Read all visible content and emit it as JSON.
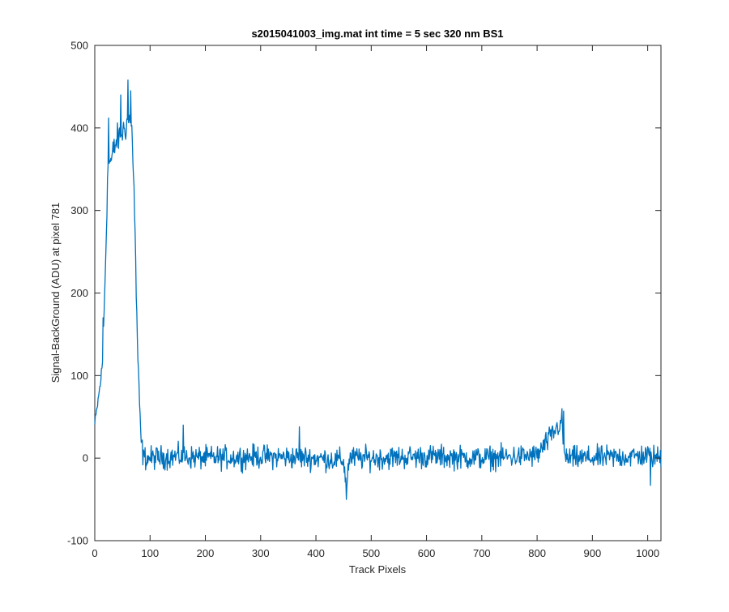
{
  "chart_data": {
    "type": "line",
    "title": "s2015041003_img.mat int time = 5 sec  320 nm BS1",
    "xlabel": "Track Pixels",
    "ylabel": "Signal-BackGround (ADU) at pixel 781",
    "xlim": [
      0,
      1024
    ],
    "ylim": [
      -100,
      500
    ],
    "x_ticks": [
      0,
      100,
      200,
      300,
      400,
      500,
      600,
      700,
      800,
      900,
      1000
    ],
    "y_ticks": [
      -100,
      0,
      100,
      200,
      300,
      400,
      500
    ],
    "x_tick_labels": [
      "0",
      "100",
      "200",
      "300",
      "400",
      "500",
      "600",
      "700",
      "800",
      "900",
      "1000"
    ],
    "y_tick_labels": [
      "-100",
      "0",
      "100",
      "200",
      "300",
      "400",
      "500"
    ],
    "grid": false,
    "legend": "none",
    "line_color": "#0072BD",
    "noise_amplitude": 12,
    "series": [
      {
        "x": [
          0,
          3,
          6,
          10,
          14,
          17,
          20,
          23,
          26,
          30,
          35,
          40,
          45,
          50,
          55,
          60,
          64,
          68,
          72,
          75,
          78,
          81,
          84,
          87,
          90,
          100,
          150,
          200,
          300,
          400,
          450,
          455,
          460,
          500,
          600,
          700,
          800,
          845,
          848,
          851,
          900,
          1000,
          1024
        ],
        "y": [
          40,
          55,
          70,
          90,
          115,
          180,
          250,
          340,
          360,
          360,
          375,
          385,
          390,
          395,
          400,
          410,
          410,
          390,
          300,
          200,
          120,
          60,
          20,
          5,
          0,
          0,
          2,
          0,
          2,
          0,
          -3,
          -35,
          0,
          0,
          2,
          0,
          3,
          45,
          10,
          0,
          0,
          3,
          0
        ],
        "spikes": [
          {
            "x": 15,
            "y": 170
          },
          {
            "x": 25,
            "y": 412
          },
          {
            "x": 47,
            "y": 440
          },
          {
            "x": 60,
            "y": 458
          },
          {
            "x": 65,
            "y": 445
          },
          {
            "x": 160,
            "y": 40
          },
          {
            "x": 370,
            "y": 38
          },
          {
            "x": 455,
            "y": -50
          },
          {
            "x": 848,
            "y": 57
          },
          {
            "x": 1005,
            "y": -33
          }
        ]
      }
    ]
  }
}
